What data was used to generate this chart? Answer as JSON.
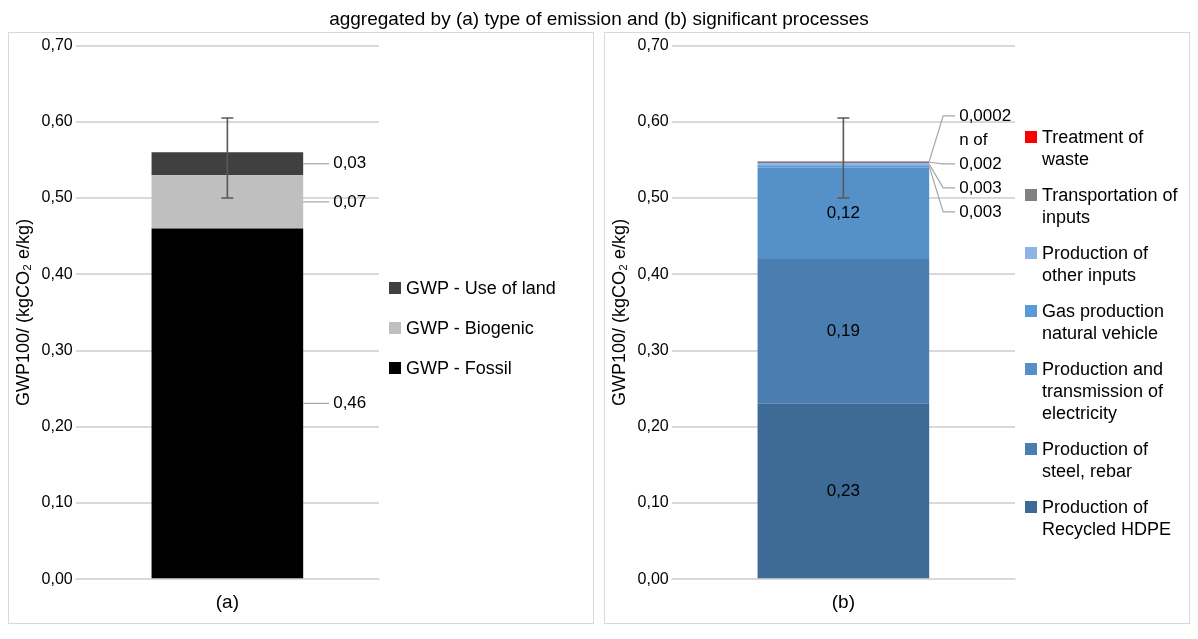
{
  "chart_data": [
    {
      "type": "bar",
      "title": "aggregated by (a) type of emission and (b) significant processes",
      "xlabel": "(a)",
      "ylabel": "GWP100/ (kgCO₂ e/kg)",
      "categories": [
        null
      ],
      "stacked": true,
      "legend": "right",
      "grid": "y",
      "ylim": [
        0,
        0.7
      ],
      "yticks": [
        {
          "value": 0,
          "label": "0,00"
        },
        {
          "value": 0.1,
          "label": "0,10"
        },
        {
          "value": 0.2,
          "label": "0,20"
        },
        {
          "value": 0.3,
          "label": "0,30"
        },
        {
          "value": 0.4,
          "label": "0,40"
        },
        {
          "value": 0.5,
          "label": "0,50"
        },
        {
          "value": 0.6,
          "label": "0,60"
        },
        {
          "value": 0.7,
          "label": "0,70"
        }
      ],
      "series": [
        {
          "name": "GWP - Fossil",
          "color": "#000000",
          "values": [
            0.46
          ],
          "value_labels": [
            "0,46"
          ]
        },
        {
          "name": "GWP - Biogenic",
          "color": "#bfbfbf",
          "values": [
            0.07
          ],
          "value_labels": [
            "0,07"
          ]
        },
        {
          "name": "GWP - Use of land",
          "color": "#404040",
          "values": [
            0.03
          ],
          "value_labels": [
            "0,03"
          ],
          "errors": [
            [
              0.5,
              0.605
            ]
          ]
        }
      ]
    },
    {
      "type": "bar",
      "xlabel": "(b)",
      "ylabel": "GWP100/ (kgCO₂ e/kg)",
      "categories": [
        null
      ],
      "stacked": true,
      "legend": "right",
      "grid": "y",
      "ylim": [
        0,
        0.7
      ],
      "yticks": [
        {
          "value": 0,
          "label": "0,00"
        },
        {
          "value": 0.1,
          "label": "0,10"
        },
        {
          "value": 0.2,
          "label": "0,20"
        },
        {
          "value": 0.3,
          "label": "0,30"
        },
        {
          "value": 0.4,
          "label": "0,40"
        },
        {
          "value": 0.5,
          "label": "0,50"
        },
        {
          "value": 0.6,
          "label": "0,60"
        },
        {
          "value": 0.7,
          "label": "0,70"
        }
      ],
      "annotations": [
        "n of"
      ],
      "series": [
        {
          "name": "Production of Recycled HDPE",
          "color": "#3e6a96",
          "values": [
            0.23
          ],
          "value_labels": [
            "0,23"
          ]
        },
        {
          "name": "Production of steel, rebar",
          "color": "#4a7eb0",
          "values": [
            0.19
          ],
          "value_labels": [
            "0,19"
          ]
        },
        {
          "name": "Production and transmission of electricity",
          "color": "#5590c8",
          "values": [
            0.12
          ],
          "value_labels": [
            "0,12"
          ]
        },
        {
          "name": "Gas production natural vehicle",
          "color": "#5b9bd5",
          "values": [
            0.003
          ],
          "value_labels": [
            "0,003"
          ]
        },
        {
          "name": "Production of other inputs",
          "color": "#8eb4e3",
          "values": [
            0.003
          ],
          "value_labels": [
            "0,003"
          ]
        },
        {
          "name": "Transportation of inputs",
          "color": "#808080",
          "values": [
            0.002
          ],
          "value_labels": [
            "0,002"
          ]
        },
        {
          "name": "Treatment of waste",
          "color": "#ff0000",
          "values": [
            0.0002
          ],
          "value_labels": [
            "0,0002"
          ],
          "errors": [
            [
              0.5,
              0.605
            ]
          ]
        }
      ]
    }
  ]
}
